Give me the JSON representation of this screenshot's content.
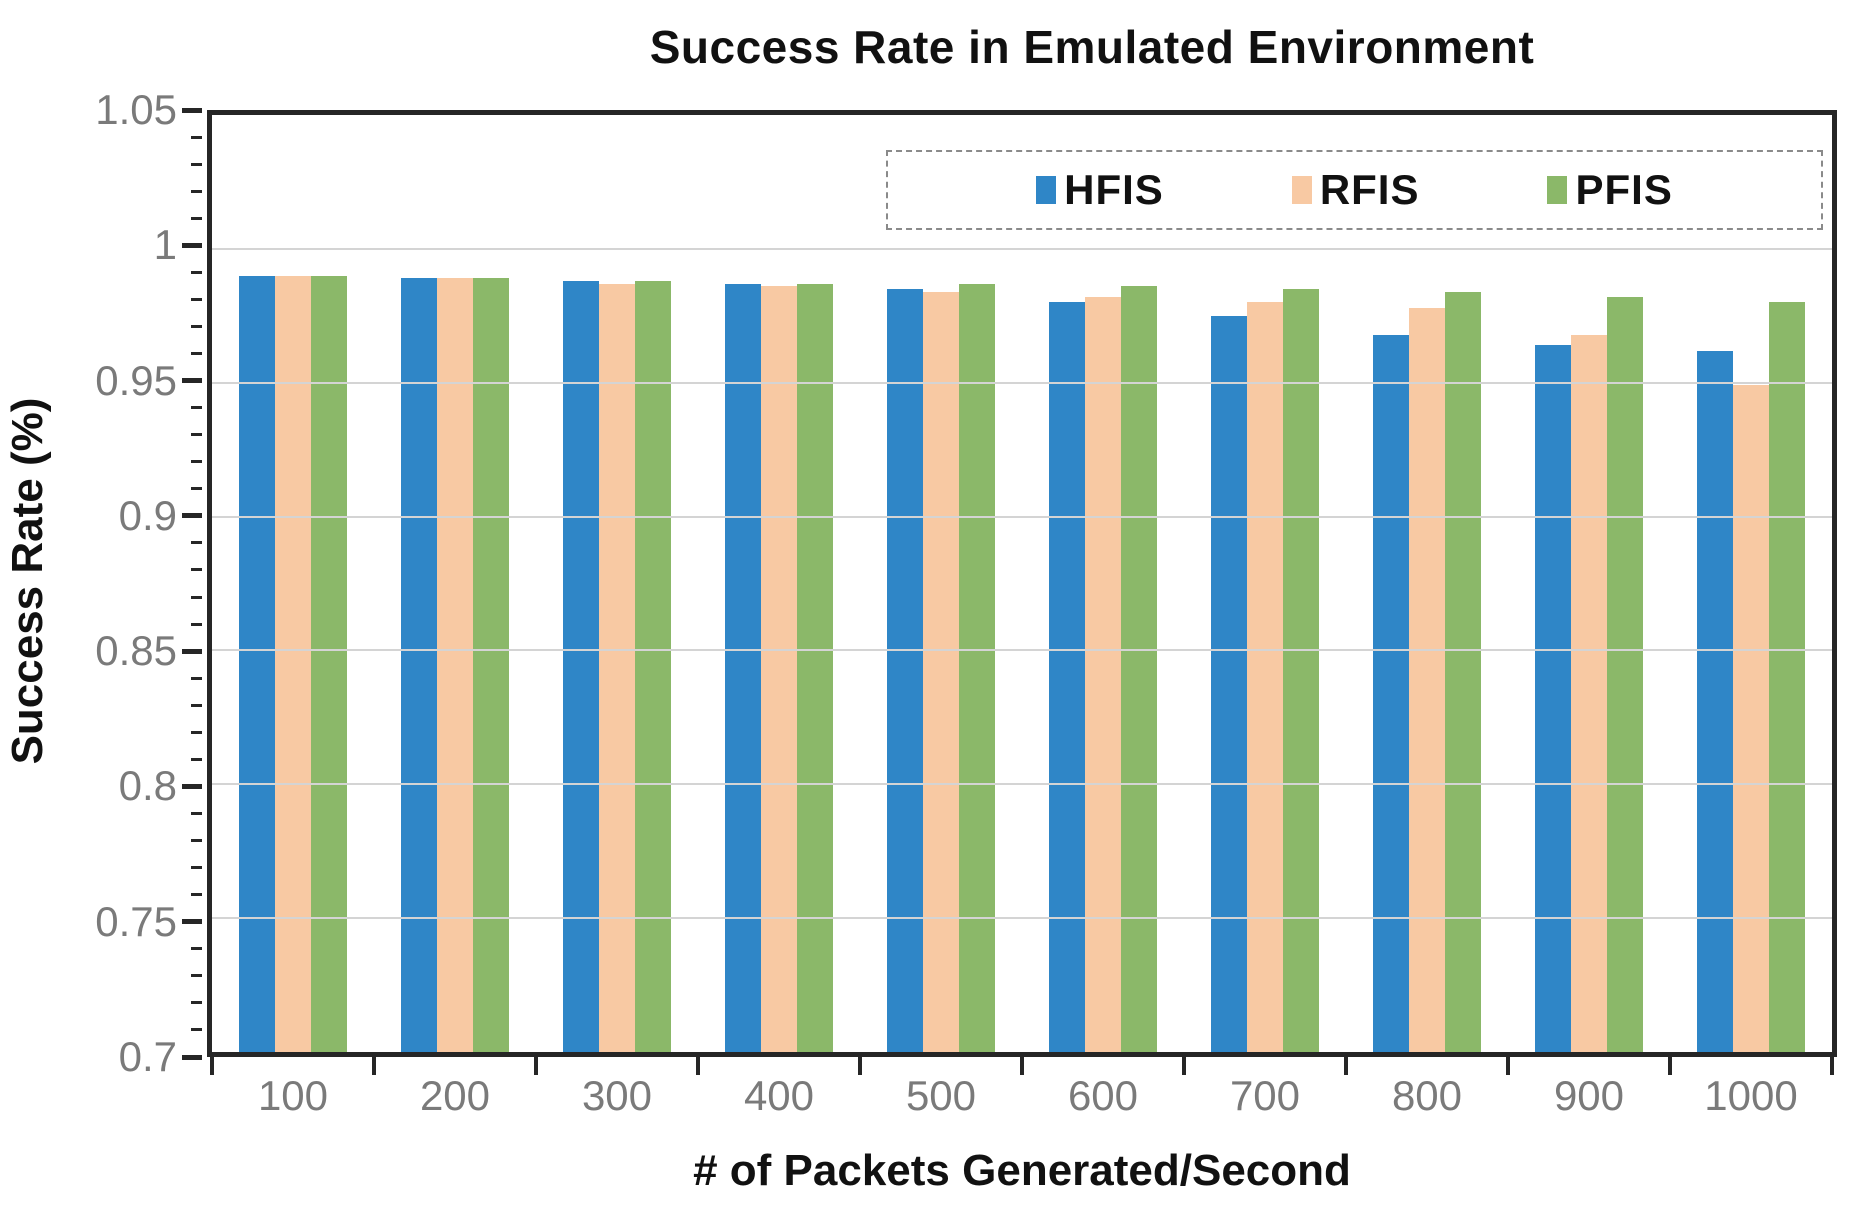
{
  "chart_data": {
    "type": "bar",
    "title": "Success Rate in Emulated Environment",
    "xlabel": "# of Packets Generated/Second",
    "ylabel": "Success Rate (%)",
    "categories": [
      "100",
      "200",
      "300",
      "400",
      "500",
      "600",
      "700",
      "800",
      "900",
      "1000"
    ],
    "series": [
      {
        "name": "HFIS",
        "color": "#2F86C7",
        "values": [
          0.99,
          0.989,
          0.988,
          0.987,
          0.985,
          0.98,
          0.975,
          0.968,
          0.964,
          0.962
        ]
      },
      {
        "name": "RFIS",
        "color": "#F8C9A3",
        "values": [
          0.99,
          0.989,
          0.987,
          0.986,
          0.984,
          0.982,
          0.98,
          0.978,
          0.968,
          0.949
        ]
      },
      {
        "name": "PFIS",
        "color": "#8BB869",
        "values": [
          0.99,
          0.989,
          0.988,
          0.987,
          0.987,
          0.986,
          0.985,
          0.984,
          0.982,
          0.98
        ]
      }
    ],
    "ylim": [
      0.7,
      1.05
    ],
    "yticks_major": [
      {
        "value": 1.05,
        "label": "1.05"
      },
      {
        "value": 1.0,
        "label": "1"
      },
      {
        "value": 0.95,
        "label": "0.95"
      },
      {
        "value": 0.9,
        "label": "0.9"
      },
      {
        "value": 0.85,
        "label": "0.85"
      },
      {
        "value": 0.8,
        "label": "0.8"
      },
      {
        "value": 0.75,
        "label": "0.75"
      },
      {
        "value": 0.7,
        "label": "0.7"
      }
    ],
    "ytick_minor_step": 0.01,
    "gridlines": [
      1.0,
      0.95,
      0.9,
      0.85,
      0.8,
      0.75
    ],
    "grid": true,
    "legend_position": "top-right",
    "legend_entries": [
      "HFIS",
      "RFIS",
      "PFIS"
    ]
  },
  "colors": {
    "axis": "#262626",
    "grid": "#D4D4D4",
    "tick_label": "#7A7A7A",
    "legend_border": "#8A8A8A",
    "text": "#111111",
    "background": "#FFFFFF",
    "hfis": "#2F86C7",
    "rfis": "#F8C9A3",
    "pfis": "#8BB869"
  }
}
